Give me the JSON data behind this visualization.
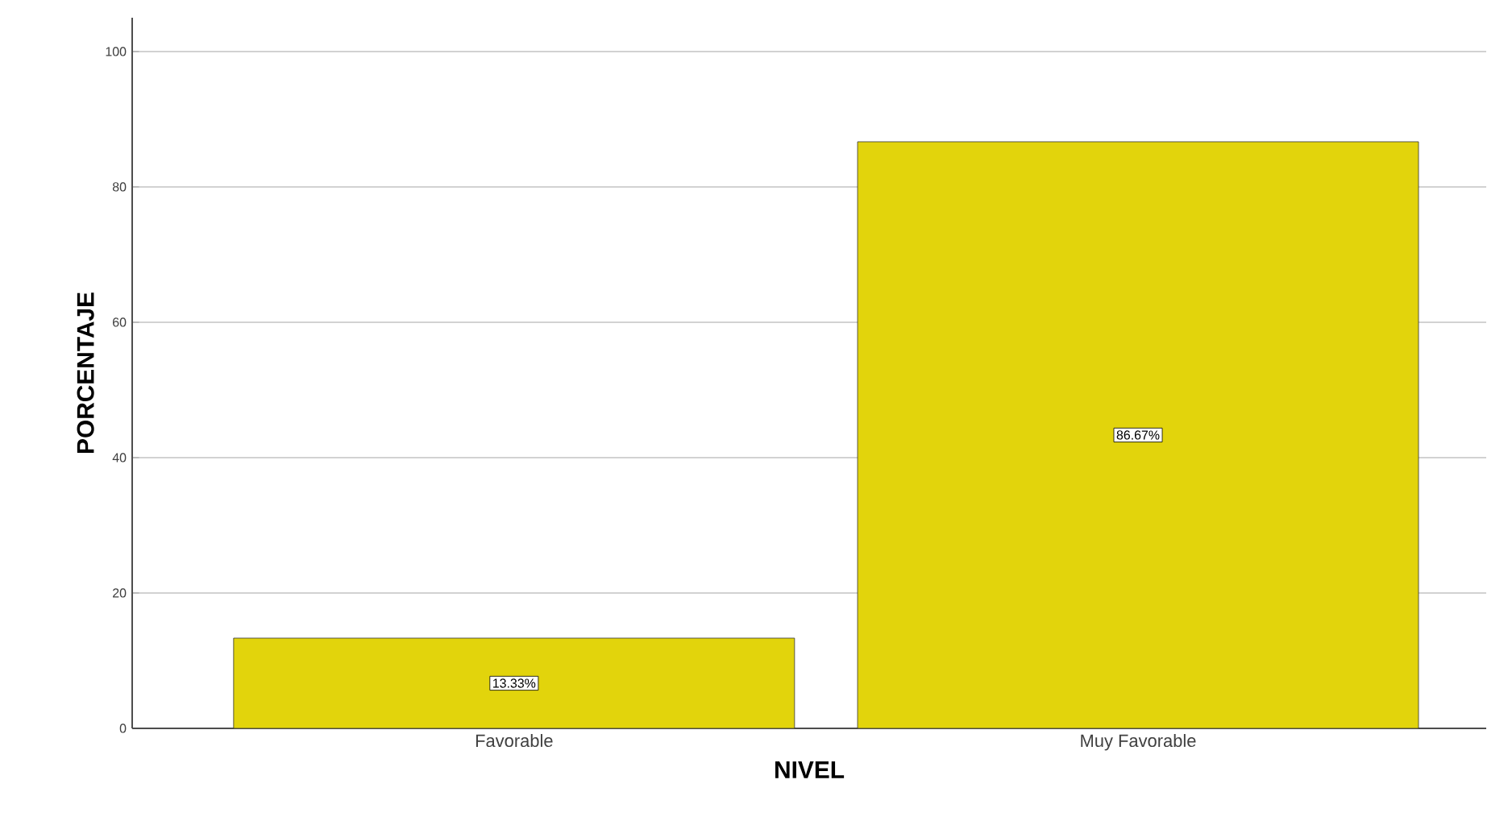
{
  "chart_data": {
    "type": "bar",
    "xlabel": "NIVEL",
    "ylabel": "PORCENTAJE",
    "categories": [
      "Favorable",
      "Muy Favorable"
    ],
    "values": [
      13.33,
      86.67
    ],
    "value_labels": [
      "13.33%",
      "86.67%"
    ],
    "color": "#e2d40c",
    "ylim": [
      0,
      105
    ],
    "yticks": [
      0,
      20,
      40,
      60,
      80,
      100
    ],
    "grid": "y"
  }
}
